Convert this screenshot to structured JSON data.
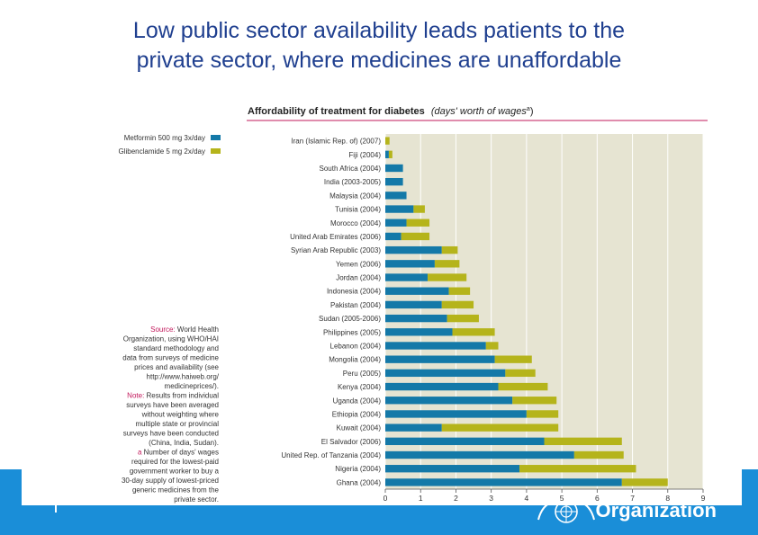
{
  "slide": {
    "title_line1": "Low public sector availability leads patients to the",
    "title_line2": "private sector, where medicines are unaffordable",
    "footer_text": "Organization"
  },
  "colors": {
    "title": "#1f3f8f",
    "metformin": "#1479a8",
    "glibenclamide": "#b5b41b",
    "plot_bg": "#e6e4d2",
    "rule": "#c2185b",
    "footer": "#1a8ed8"
  },
  "chart_data": {
    "type": "bar",
    "orientation": "horizontal",
    "stacked": true,
    "title": "Affordability of treatment for diabetes",
    "title_units": "(days' worth of wages",
    "title_sup": "a",
    "title_close": ")",
    "categories": [
      "Iran (Islamic Rep. of) (2007)",
      "Fiji (2004)",
      "South Africa (2004)",
      "India (2003-2005)",
      "Malaysia (2004)",
      "Tunisia (2004)",
      "Morocco (2004)",
      "United Arab Emirates (2006)",
      "Syrian Arab Republic (2003)",
      "Yemen (2006)",
      "Jordan (2004)",
      "Indonesia (2004)",
      "Pakistan (2004)",
      "Sudan (2005-2006)",
      "Philippines (2005)",
      "Lebanon (2004)",
      "Mongolia (2004)",
      "Peru (2005)",
      "Kenya (2004)",
      "Uganda (2004)",
      "Ethiopia (2004)",
      "Kuwait (2004)",
      "El Salvador (2006)",
      "United Rep. of Tanzania (2004)",
      "Nigeria (2004)",
      "Ghana (2004)"
    ],
    "series": [
      {
        "name": "Metformin 500 mg 3x/day",
        "color": "#1479a8",
        "values": [
          0.0,
          0.1,
          0.5,
          0.5,
          0.6,
          0.8,
          0.6,
          0.45,
          1.6,
          1.4,
          1.2,
          1.8,
          1.6,
          1.75,
          1.9,
          2.85,
          3.1,
          3.4,
          3.2,
          3.6,
          4.0,
          1.6,
          4.5,
          5.35,
          3.8,
          6.7
        ]
      },
      {
        "name": "Glibenclamide 5 mg 2x/day",
        "color": "#b5b41b",
        "values": [
          0.12,
          0.1,
          0.0,
          0.0,
          0.0,
          0.32,
          0.65,
          0.8,
          0.45,
          0.7,
          1.1,
          0.6,
          0.9,
          0.9,
          1.2,
          0.35,
          1.05,
          0.85,
          1.4,
          1.25,
          0.9,
          3.3,
          2.2,
          1.4,
          3.3,
          1.3
        ]
      }
    ],
    "xlim": [
      0,
      9
    ],
    "xticks": [
      "0",
      "1",
      "2",
      "3",
      "4",
      "5",
      "6",
      "7",
      "8",
      "9"
    ],
    "grid": true,
    "legend": "top-left",
    "source_note": [
      {
        "label": "Source:",
        "lines": [
          "World Health",
          "Organization, using WHO/HAI",
          "standard methodology and",
          "data from surveys of medicine",
          "prices and availability (see",
          "http://www.haiweb.org/",
          "medicineprices/)."
        ]
      },
      {
        "label": "Note:",
        "lines": [
          "Results from individual",
          "surveys have been averaged",
          "without weighting where",
          "multiple state or provincial",
          "surveys have been conducted",
          "(China, India, Sudan)."
        ]
      },
      {
        "label": "a",
        "lines": [
          "Number of days' wages",
          "required for the lowest-paid",
          "government worker to buy a",
          "30-day supply of lowest-priced",
          "generic medicines from the",
          "private sector."
        ]
      }
    ]
  }
}
